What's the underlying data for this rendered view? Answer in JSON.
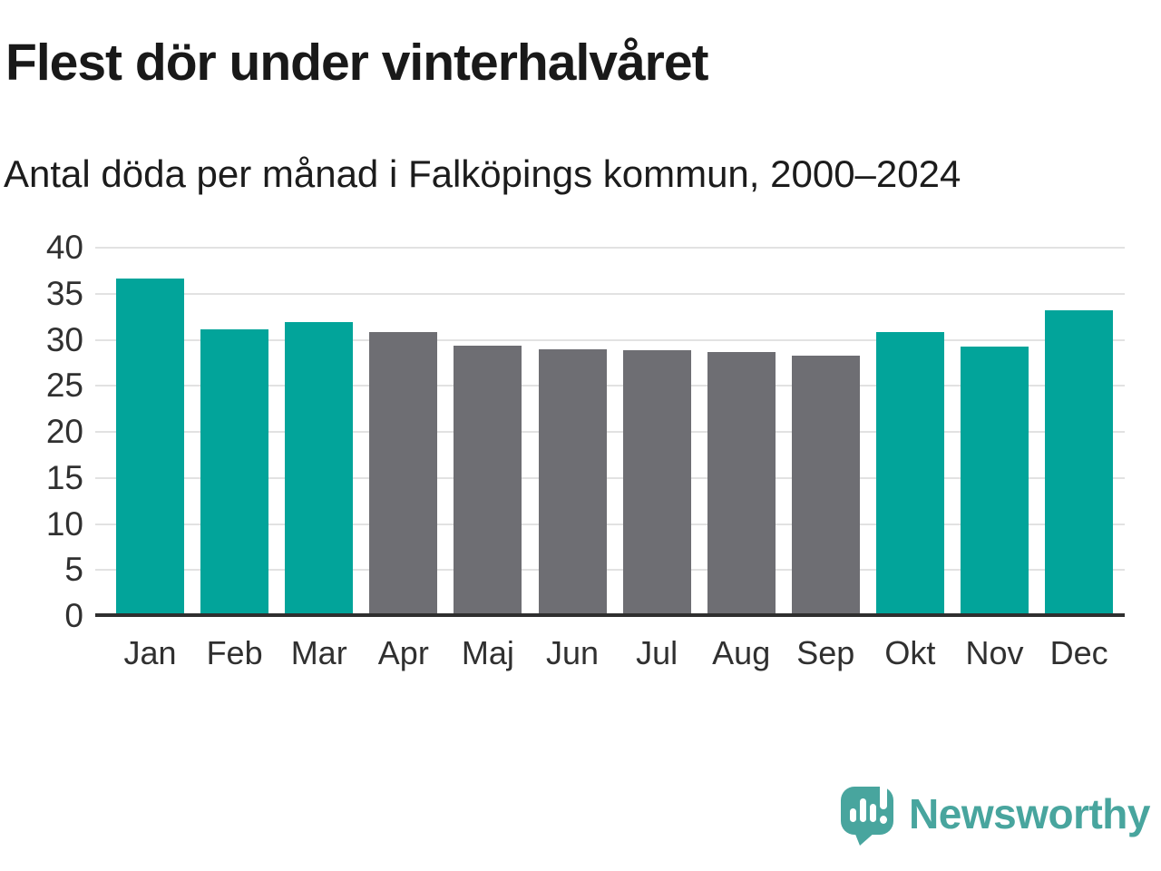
{
  "header": {
    "title": "Flest dör under vinterhalvåret",
    "subtitle": "Antal döda per månad i Falköpings kommun, 2000–2024"
  },
  "chart_data": {
    "type": "bar",
    "title": "Flest dör under vinterhalvåret",
    "subtitle": "Antal döda per månad i Falköpings kommun, 2000–2024",
    "categories": [
      "Jan",
      "Feb",
      "Mar",
      "Apr",
      "Maj",
      "Jun",
      "Jul",
      "Aug",
      "Sep",
      "Okt",
      "Nov",
      "Dec"
    ],
    "values": [
      36.7,
      31.1,
      31.9,
      30.8,
      29.4,
      29.0,
      28.9,
      28.7,
      28.3,
      30.8,
      29.3,
      33.2
    ],
    "bar_groups": [
      "winter",
      "winter",
      "winter",
      "summer",
      "summer",
      "summer",
      "summer",
      "summer",
      "summer",
      "winter",
      "winter",
      "winter"
    ],
    "xlabel": "",
    "ylabel": "",
    "ylim": [
      0,
      40
    ],
    "yticks": [
      0,
      5,
      10,
      15,
      20,
      25,
      30,
      35,
      40
    ],
    "grid": "horizontal",
    "legend": "none"
  },
  "colors": {
    "winter_bar": "#02a49a",
    "summer_bar": "#6e6e73",
    "gridline": "#e2e2e2",
    "axis_line": "#2f2f2f",
    "title_text": "#191919",
    "tick_text": "#303030",
    "brand_teal": "#48a59e"
  },
  "footer": {
    "brand": "Newsworthy",
    "logo_icon": "speech-bubble-bar-chart-icon"
  }
}
